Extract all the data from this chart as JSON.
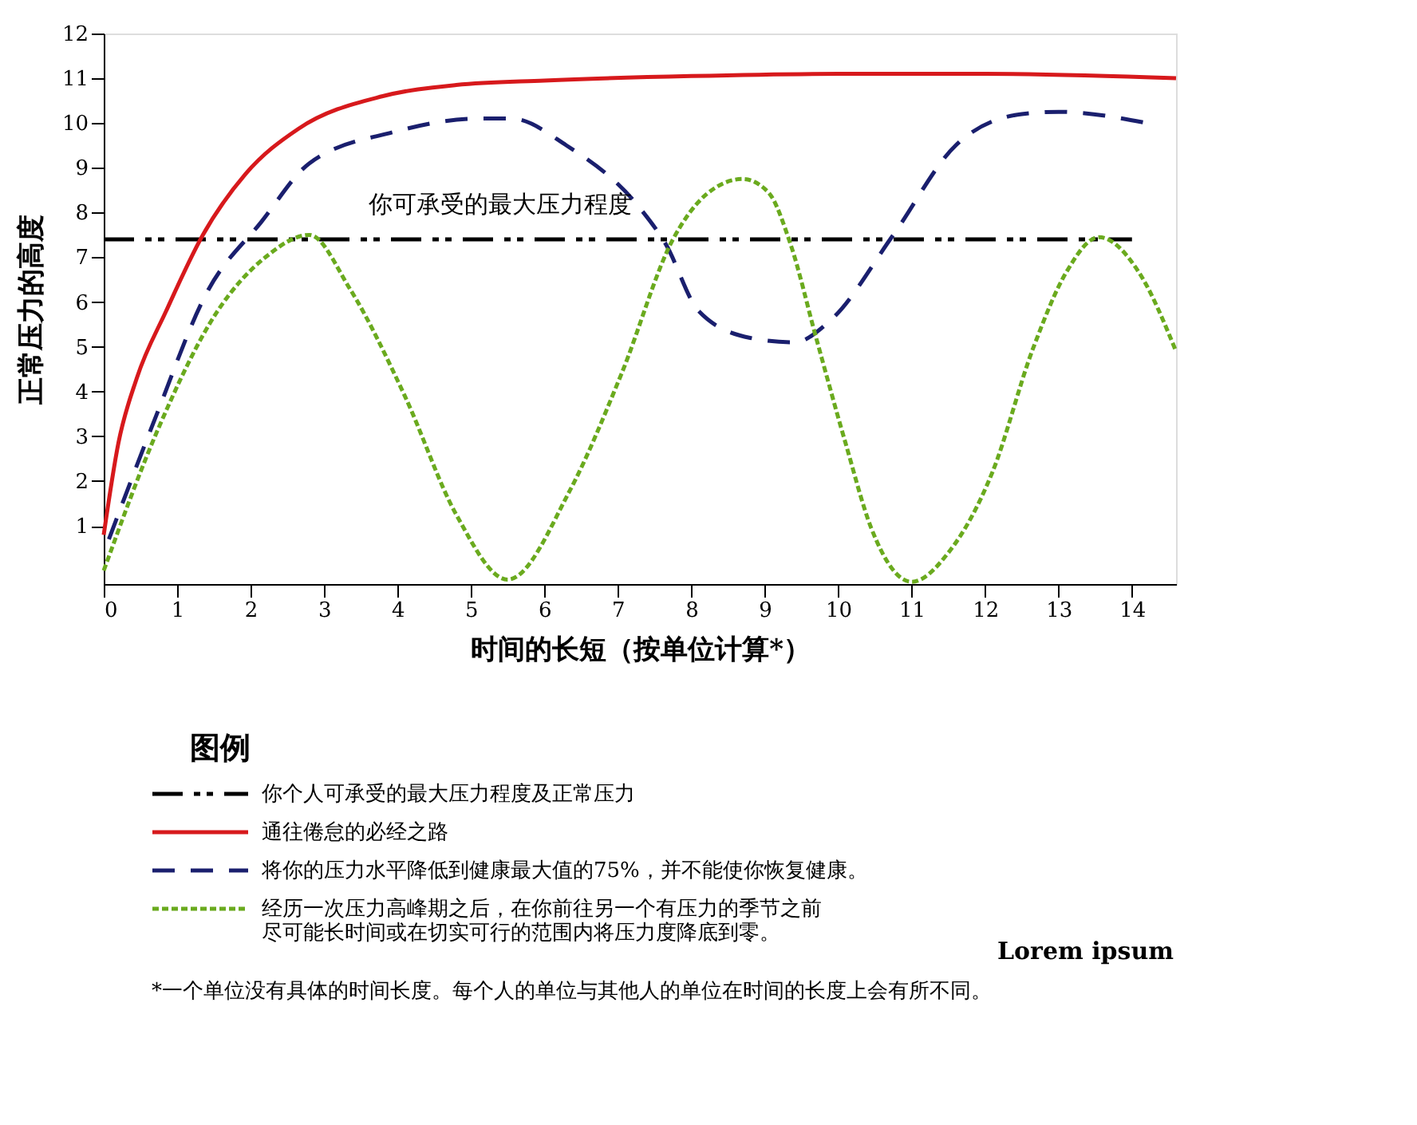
{
  "chart_data": {
    "type": "line",
    "xlabel": "时间的长短（按单位计算*）",
    "ylabel": "正常压力的高度",
    "legend_title": "图例",
    "legend": "bottom",
    "grid": false,
    "marker": "none",
    "xlim": [
      0,
      14.6
    ],
    "xticks": [
      0,
      1,
      2,
      3,
      4,
      5,
      6,
      7,
      8,
      9,
      10,
      11,
      12,
      13,
      14
    ],
    "ylim": [
      -0.3,
      12
    ],
    "yticks": [
      1,
      2,
      3,
      4,
      5,
      6,
      7,
      8,
      9,
      10,
      11,
      12
    ],
    "series": [
      {
        "name": "你个人可承受的最大压力程度及正常压力",
        "color": "#000000",
        "line_style": "dashdot",
        "x": [
          0,
          14
        ],
        "values": [
          7.4,
          7.4
        ]
      },
      {
        "name": "通往倦怠的必经之路",
        "color": "#d7191c",
        "line_style": "solid",
        "x": [
          0,
          0.2,
          0.45,
          0.85,
          1.35,
          1.93,
          2.65,
          3.8,
          4.8,
          6,
          8,
          10,
          12,
          14.6
        ],
        "values": [
          0.8,
          2.85,
          4.3,
          5.8,
          7.5,
          8.86,
          9.87,
          10.6,
          10.85,
          10.95,
          11.05,
          11.1,
          11.1,
          11.0
        ]
      },
      {
        "name": "将你的压力水平降低到健康最大值的75%，并不能使你恢复健康。",
        "color": "#1a1f6e",
        "line_style": "dashed",
        "x": [
          0.07,
          0.7,
          1.4,
          2.15,
          2.8,
          3.95,
          5.1,
          5.55,
          6.3,
          7.3,
          7.65,
          8.1,
          8.8,
          9.4,
          9.9,
          10.75,
          11.6,
          12.5,
          13.0,
          14.2
        ],
        "values": [
          0.7,
          3.4,
          6.2,
          7.8,
          9.1,
          9.8,
          10.1,
          10.1,
          9.5,
          8.1,
          7.3,
          5.8,
          5.2,
          5.1,
          5.6,
          7.5,
          9.5,
          10.2,
          10.25,
          10.0
        ]
      },
      {
        "name": "经历一次压力高峰期之后，在你前往另一个有压力的季节之前尽可能长时间或在切实可行的范围内将压力度降底到零。",
        "color": "#6aaa1e",
        "line_style": "dotted",
        "x": [
          0,
          0.75,
          1.55,
          2.2,
          2.8,
          3.35,
          4.1,
          4.8,
          5.5,
          6.35,
          7.05,
          7.75,
          8.2,
          8.7,
          9.05,
          9.35,
          9.7,
          10.1,
          10.45,
          11.0,
          11.5,
          12.1,
          12.65,
          13.1,
          13.55,
          14.1,
          14.6
        ],
        "values": [
          0,
          3.2,
          5.8,
          7.0,
          7.5,
          6.3,
          3.9,
          1.25,
          -0.2,
          1.8,
          4.4,
          7.4,
          8.4,
          8.75,
          8.45,
          7.3,
          5.2,
          2.85,
          0.95,
          -0.25,
          0.4,
          2.2,
          4.95,
          6.65,
          7.45,
          6.65,
          4.9
        ]
      }
    ],
    "annotations": [
      {
        "text": "你可承受的最大压力程度",
        "x": 5.4,
        "y": 7.4
      },
      "*一个单位没有具体的时间长度。每个人的单位与其他人的单位在时间的长度上会有所不同。",
      "Lorem ipsum"
    ]
  }
}
